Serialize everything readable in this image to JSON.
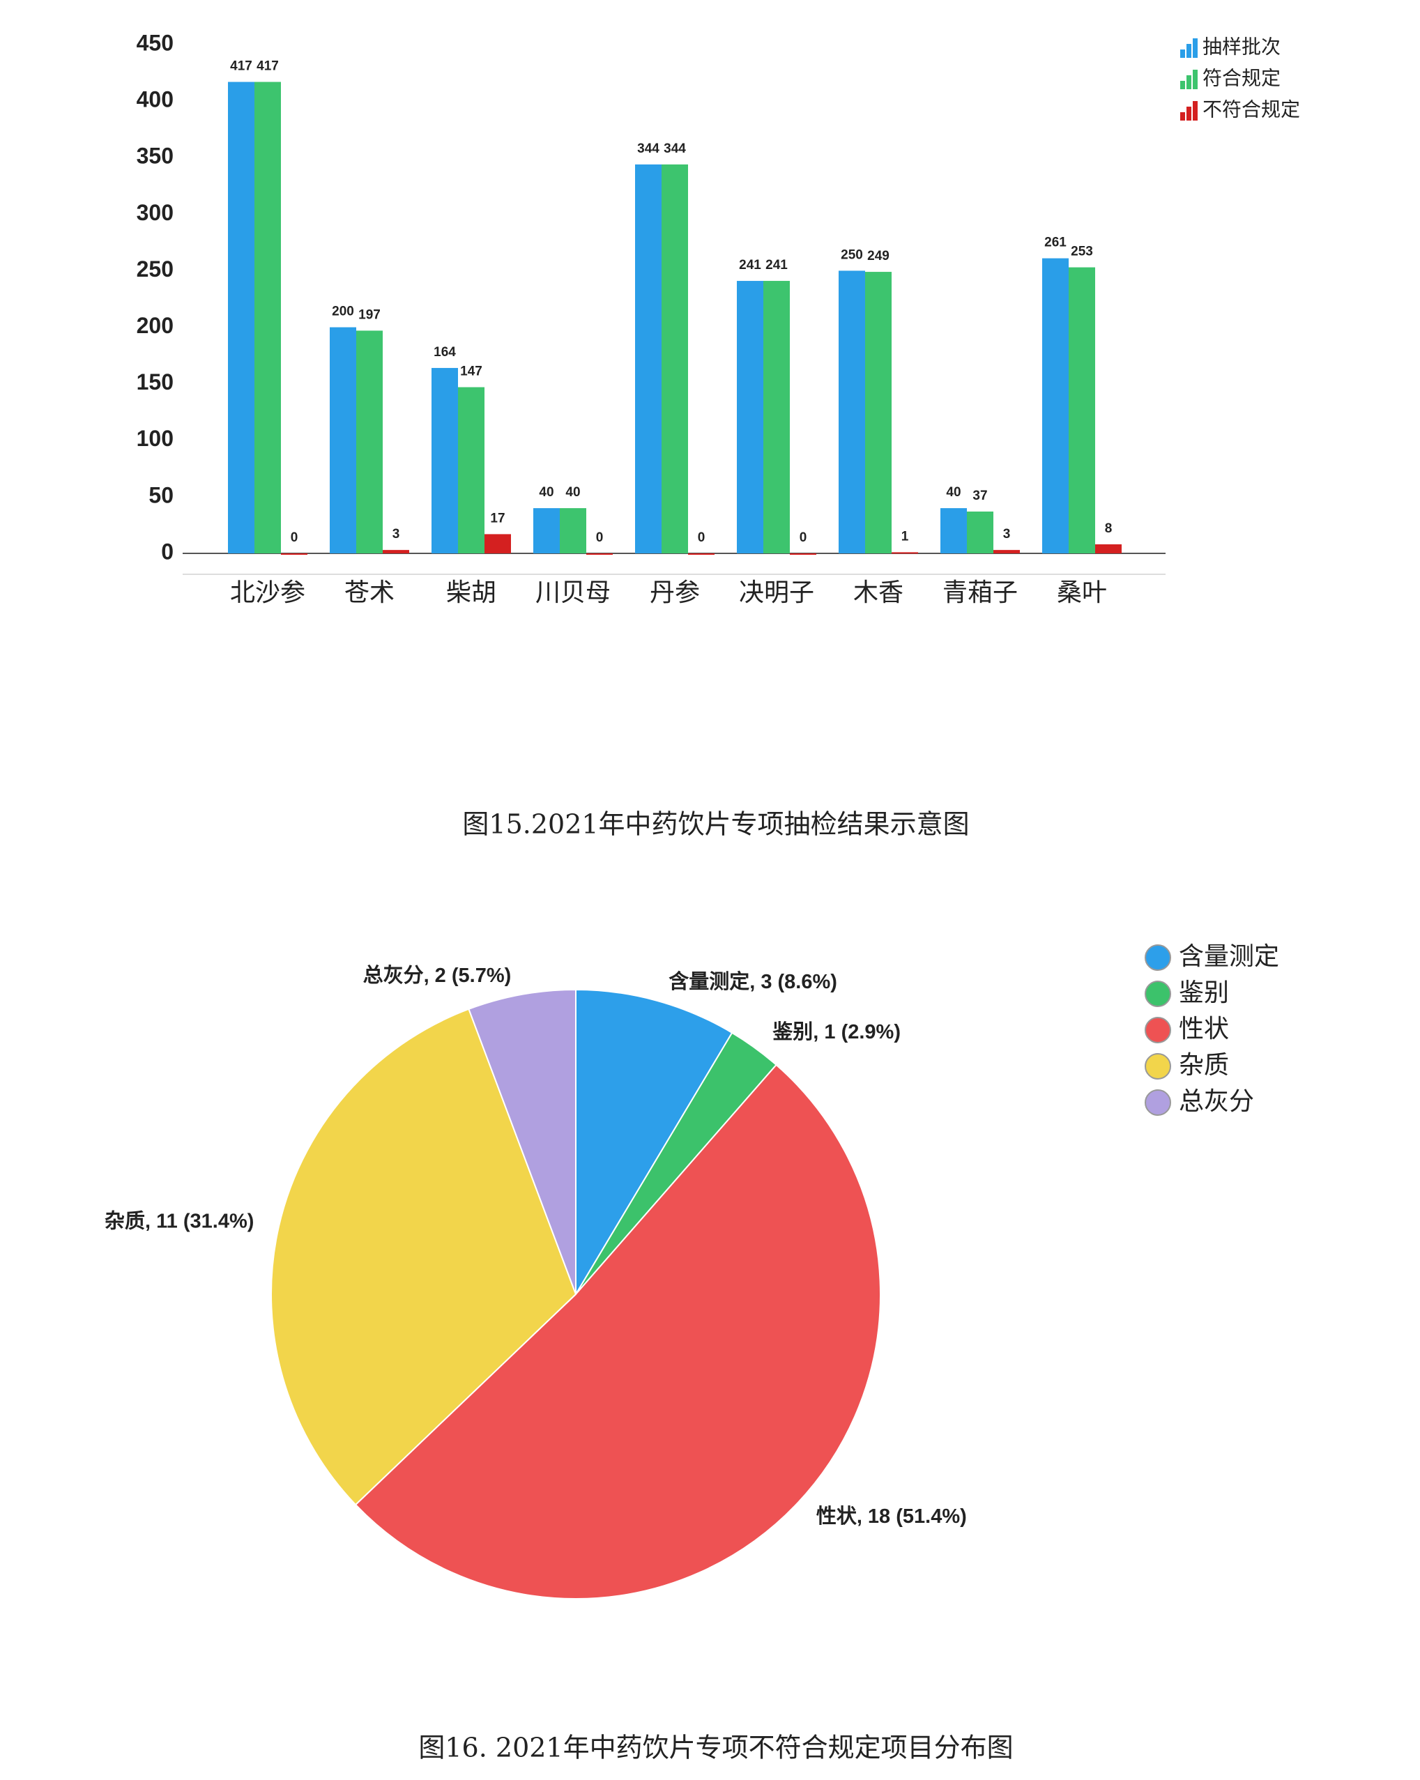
{
  "chart_data": [
    {
      "type": "bar",
      "caption": "图15.2021年中药饮片专项抽检结果示意图",
      "categories": [
        "北沙参",
        "苍术",
        "柴胡",
        "川贝母",
        "丹参",
        "决明子",
        "木香",
        "青葙子",
        "桑叶"
      ],
      "series": [
        {
          "name": "抽样批次",
          "color": "#2a9ee8",
          "values": [
            417,
            200,
            164,
            40,
            344,
            241,
            250,
            40,
            261
          ]
        },
        {
          "name": "符合规定",
          "color": "#3dc46e",
          "values": [
            417,
            197,
            147,
            40,
            344,
            241,
            249,
            37,
            253
          ]
        },
        {
          "name": "不符合规定",
          "color": "#d42020",
          "values": [
            0,
            3,
            17,
            0,
            0,
            0,
            1,
            3,
            8
          ]
        }
      ],
      "ylim": [
        0,
        450
      ],
      "yticks": [
        0,
        50,
        100,
        150,
        200,
        250,
        300,
        350,
        400,
        450
      ],
      "grid": false,
      "legend": "top-right"
    },
    {
      "type": "pie",
      "caption": "图16. 2021年中药饮片专项不符合规定项目分布图",
      "categories": [
        "含量测定",
        "鉴别",
        "性状",
        "杂质",
        "总灰分"
      ],
      "values": [
        3,
        1,
        18,
        11,
        2
      ],
      "value_labels": [
        "含量测定, 3 (8.6%)",
        "鉴别, 1 (2.9%)",
        "性状, 18 (51.4%)",
        "杂质, 11 (31.4%)",
        "总灰分, 2 (5.7%)"
      ],
      "colors": [
        "#2d9fea",
        "#3cc26b",
        "#ee5253",
        "#f2d54b",
        "#b0a0e0"
      ],
      "legend": "top-right"
    }
  ]
}
